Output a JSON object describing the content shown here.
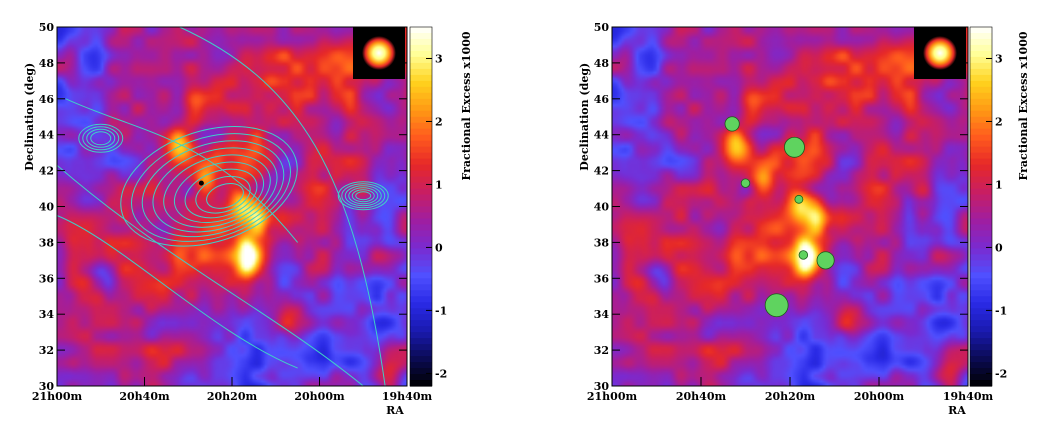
{
  "chart_data": [
    {
      "type": "heatmap",
      "panel": "left",
      "title": "",
      "xlabel": "RA",
      "ylabel": "Declination (deg)",
      "zlabel": "Fractional Excess x1000",
      "x_ticks": [
        "21h00m",
        "20h40m",
        "20h20m",
        "20h00m",
        "19h40m"
      ],
      "x_range_minutes": [
        1260,
        1180
      ],
      "y_ticks": [
        30,
        32,
        34,
        36,
        38,
        40,
        42,
        44,
        46,
        48,
        50
      ],
      "ylim": [
        30,
        50
      ],
      "zlim": [
        -2.2,
        3.5
      ],
      "z_ticks": [
        -2,
        -1,
        0,
        1,
        2,
        3
      ],
      "colormap": [
        "#000000",
        "#0b0b55",
        "#1a1ab0",
        "#2a2ae6",
        "#5050ff",
        "#7a2ad0",
        "#a01ea0",
        "#c81e64",
        "#e62828",
        "#ff5a1e",
        "#ff9a14",
        "#ffd21e",
        "#ffff96",
        "#ffffff"
      ],
      "hotspots": [
        {
          "ra_min": 1216,
          "dec": 37.2,
          "z": 3.3
        },
        {
          "ra_min": 1218,
          "dec": 40.2,
          "z": 2.2
        },
        {
          "ra_min": 1232,
          "dec": 43.4,
          "z": 2.2
        },
        {
          "ra_min": 1226,
          "dec": 41.3,
          "z": 1.7
        },
        {
          "ra_min": 1214,
          "dec": 39.3,
          "z": 2.1
        },
        {
          "ra_min": 1228,
          "dec": 45.5,
          "z": 1.3
        },
        {
          "ra_min": 1190,
          "dec": 40.5,
          "z": 1.0
        },
        {
          "ra_min": 1206,
          "dec": 33.6,
          "z": 1.2
        },
        {
          "ra_min": 1184,
          "dec": 30.5,
          "z": 1.5
        },
        {
          "ra_min": 1250,
          "dec": 36.0,
          "z": -1.5
        },
        {
          "ra_min": 1196,
          "dec": 44.5,
          "z": -0.6
        }
      ],
      "psf_marker": {
        "position": "top-right",
        "color": "#ffd21e"
      },
      "overlay": {
        "type": "contours",
        "color": "#3fd0c8",
        "description": "gas column density contours"
      }
    },
    {
      "type": "heatmap",
      "panel": "right",
      "title": "",
      "xlabel": "RA",
      "ylabel": "Declination (deg)",
      "zlabel": "Fractional Excess x1000",
      "x_ticks": [
        "21h00m",
        "20h40m",
        "20h20m",
        "20h00m",
        "19h40m"
      ],
      "x_range_minutes": [
        1260,
        1180
      ],
      "y_ticks": [
        30,
        32,
        34,
        36,
        38,
        40,
        42,
        44,
        46,
        48,
        50
      ],
      "ylim": [
        30,
        50
      ],
      "zlim": [
        -2.2,
        3.5
      ],
      "z_ticks": [
        -2,
        -1,
        0,
        1,
        2,
        3
      ],
      "overlay": {
        "type": "circles",
        "color": "#5fd35f",
        "circles": [
          {
            "ra_min": 1233,
            "dec": 44.6,
            "radius_deg": 0.5
          },
          {
            "ra_min": 1219,
            "dec": 43.3,
            "radius_deg": 0.7
          },
          {
            "ra_min": 1230,
            "dec": 41.3,
            "radius_deg": 0.3
          },
          {
            "ra_min": 1218,
            "dec": 40.4,
            "radius_deg": 0.2
          },
          {
            "ra_min": 1217,
            "dec": 37.3,
            "radius_deg": 0.3
          },
          {
            "ra_min": 1212,
            "dec": 37.0,
            "radius_deg": 0.6
          },
          {
            "ra_min": 1223,
            "dec": 34.5,
            "radius_deg": 0.8
          }
        ]
      }
    }
  ]
}
